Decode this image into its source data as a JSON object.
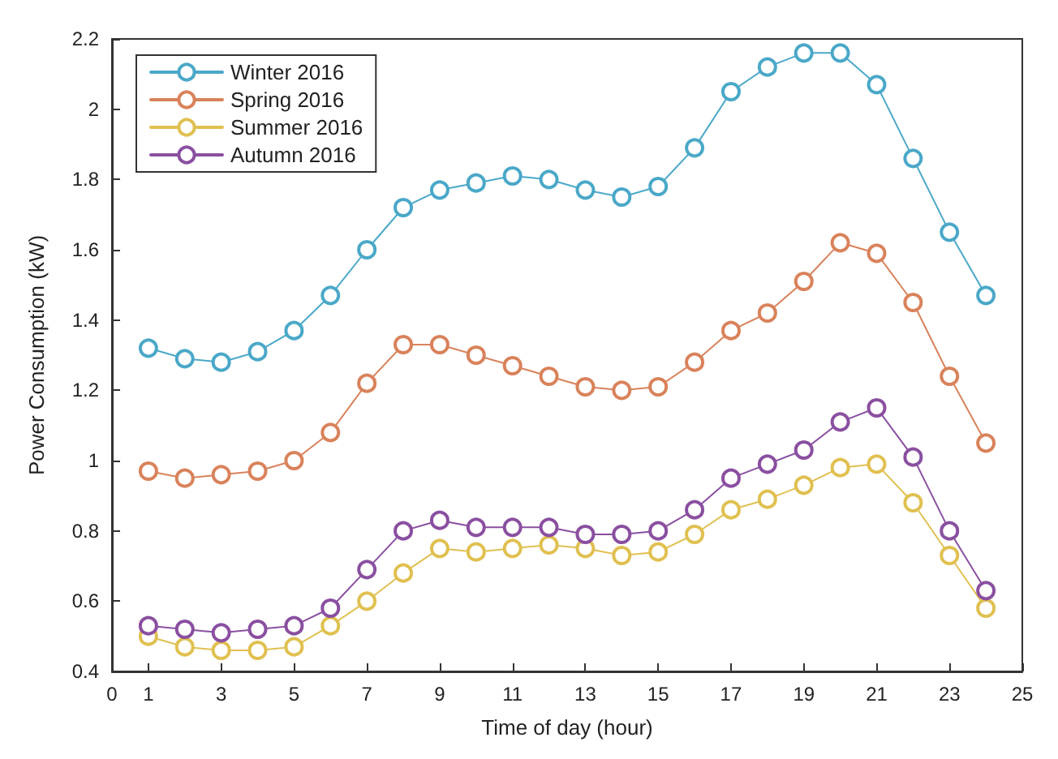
{
  "chart_data": {
    "type": "line",
    "xlabel": "Time of day (hour)",
    "ylabel": "Power Consumption (kW)",
    "x": [
      1,
      2,
      3,
      4,
      5,
      6,
      7,
      8,
      9,
      10,
      11,
      12,
      13,
      14,
      15,
      16,
      17,
      18,
      19,
      20,
      21,
      22,
      23,
      24
    ],
    "xlim": [
      0,
      25
    ],
    "xticks": [
      0,
      1,
      3,
      5,
      7,
      9,
      11,
      13,
      15,
      17,
      19,
      21,
      23,
      25
    ],
    "ylim": [
      0.4,
      2.2
    ],
    "yticks": [
      0.4,
      0.6,
      0.8,
      1,
      1.2,
      1.4,
      1.6,
      1.8,
      2,
      2.2
    ],
    "grid": false,
    "legend": "top left",
    "marker": "circle",
    "line_style": "solid",
    "series": [
      {
        "name": "Winter 2016",
        "color": "#4aa8c8",
        "values": [
          1.32,
          1.29,
          1.28,
          1.31,
          1.37,
          1.47,
          1.6,
          1.72,
          1.77,
          1.79,
          1.81,
          1.8,
          1.77,
          1.75,
          1.78,
          1.89,
          2.05,
          2.12,
          2.16,
          2.16,
          2.07,
          1.86,
          1.65,
          1.47
        ]
      },
      {
        "name": "Spring 2016",
        "color": "#d9825b",
        "values": [
          0.97,
          0.95,
          0.96,
          0.97,
          1.0,
          1.08,
          1.22,
          1.33,
          1.33,
          1.3,
          1.27,
          1.24,
          1.21,
          1.2,
          1.21,
          1.28,
          1.37,
          1.42,
          1.51,
          1.62,
          1.59,
          1.45,
          1.24,
          1.05
        ]
      },
      {
        "name": "Summer 2016",
        "color": "#e0c050",
        "values": [
          0.5,
          0.47,
          0.46,
          0.46,
          0.47,
          0.53,
          0.6,
          0.68,
          0.75,
          0.74,
          0.75,
          0.76,
          0.75,
          0.73,
          0.74,
          0.79,
          0.86,
          0.89,
          0.93,
          0.98,
          0.99,
          0.88,
          0.73,
          0.58
        ]
      },
      {
        "name": "Autumn 2016",
        "color": "#8a4fa0",
        "values": [
          0.53,
          0.52,
          0.51,
          0.52,
          0.53,
          0.58,
          0.69,
          0.8,
          0.83,
          0.81,
          0.81,
          0.81,
          0.79,
          0.79,
          0.8,
          0.86,
          0.95,
          0.99,
          1.03,
          1.11,
          1.15,
          1.01,
          0.8,
          0.63
        ]
      }
    ]
  }
}
